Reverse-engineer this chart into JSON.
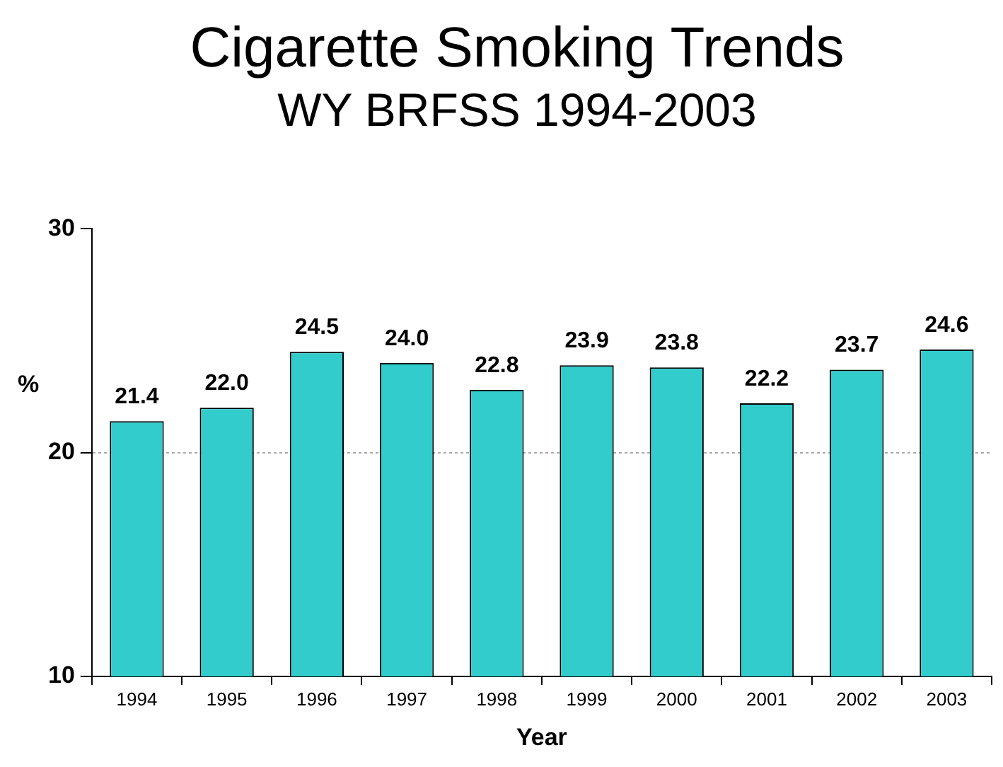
{
  "chart_data": {
    "type": "bar",
    "title": "Cigarette Smoking Trends",
    "subtitle": "WY BRFSS 1994-2003",
    "xlabel": "Year",
    "ylabel": "%",
    "categories": [
      "1994",
      "1995",
      "1996",
      "1997",
      "1998",
      "1999",
      "2000",
      "2001",
      "2002",
      "2003"
    ],
    "values": [
      21.4,
      22.0,
      24.5,
      24.0,
      22.8,
      23.9,
      23.8,
      22.2,
      23.7,
      24.6
    ],
    "color": "#33cccc",
    "ylim": [
      10,
      30
    ],
    "yticks": [
      10,
      20,
      30
    ],
    "value_labels": [
      "21.4",
      "22.0",
      "24.5",
      "24.0",
      "22.8",
      "23.9",
      "23.8",
      "22.2",
      "23.7",
      "24.6"
    ],
    "grid": "y",
    "legend": false
  }
}
